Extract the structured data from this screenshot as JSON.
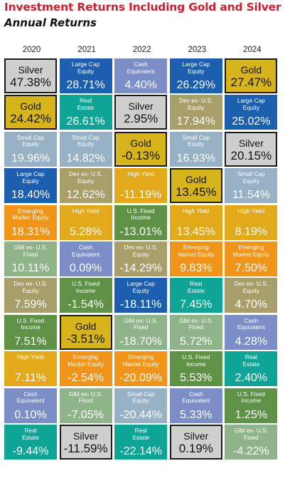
{
  "title": "Investment Returns Including Gold and Silver",
  "subtitle": "Annual Returns",
  "colors": {
    "Silver": "#cfcfcf",
    "Gold": "#d8b41c",
    "Large Cap Equity": "#1b5fae",
    "Real Estate": "#0ea597",
    "Cash Equivalent": "#7b8ec8",
    "Small Cap Equity": "#97b1c6",
    "Dev ex- U.S. Equity": "#a89e6a",
    "High Yield": "#e2aa1a",
    "Emerging Market Equity": "#f0941a",
    "Glbl ex- U.S. Fixed": "#8fb48a",
    "U.S. Fixed Income": "#5f9146",
    "title": "#c8202f"
  },
  "chart_data": {
    "type": "table",
    "title": "Investment Returns Including Gold and Silver",
    "subtitle": "Annual Returns",
    "years": [
      "2020",
      "2021",
      "2022",
      "2023",
      "2024"
    ],
    "columns": [
      {
        "year": "2020",
        "cells": [
          {
            "asset": "Silver",
            "value": "47.38%"
          },
          {
            "asset": "Gold",
            "value": "24.42%"
          },
          {
            "asset": "Small Cap Equity",
            "value": "19.96%"
          },
          {
            "asset": "Large Cap Equity",
            "value": "18.40%"
          },
          {
            "asset": "Emerging Market Equity",
            "value": "18.31%"
          },
          {
            "asset": "Glbl ex- U.S. Fixed",
            "value": "10.11%"
          },
          {
            "asset": "Dev ex- U.S. Equity",
            "value": "7.59%"
          },
          {
            "asset": "U.S. Fixed Income",
            "value": "7.51%"
          },
          {
            "asset": "High Yield",
            "value": "7.11%"
          },
          {
            "asset": "Cash Equivalent",
            "value": "0.10%"
          },
          {
            "asset": "Real Estate",
            "value": "-9.44%"
          }
        ]
      },
      {
        "year": "2021",
        "cells": [
          {
            "asset": "Large Cap Equity",
            "value": "28.71%"
          },
          {
            "asset": "Real Estate",
            "value": "26.61%"
          },
          {
            "asset": "Small Cap Equity",
            "value": "14.82%"
          },
          {
            "asset": "Dev ex- U.S. Equity",
            "value": "12.62%"
          },
          {
            "asset": "High Yield",
            "value": "5.28%"
          },
          {
            "asset": "Cash Equivalent",
            "value": "0.09%"
          },
          {
            "asset": "U.S. Fixed Income",
            "value": "-1.54%"
          },
          {
            "asset": "Gold",
            "value": "-3.51%"
          },
          {
            "asset": "Emerging Market Equity",
            "value": "-2.54%"
          },
          {
            "asset": "Glbl ex- U.S. Fixed",
            "value": "-7.05%"
          },
          {
            "asset": "Silver",
            "value": "-11.59%"
          }
        ]
      },
      {
        "year": "2022",
        "cells": [
          {
            "asset": "Cash Equivalent",
            "value": "4.40%"
          },
          {
            "asset": "Silver",
            "value": "2.95%"
          },
          {
            "asset": "Gold",
            "value": "-0.13%"
          },
          {
            "asset": "High Yield",
            "value": "-11.19%"
          },
          {
            "asset": "U.S. Fixed Income",
            "value": "-13.01%"
          },
          {
            "asset": "Dev ex- U.S. Equity",
            "value": "-14.29%"
          },
          {
            "asset": "Large Cap Equity",
            "value": "-18.11%"
          },
          {
            "asset": "Glbl ex- U.S. Fixed",
            "value": "-18.70%"
          },
          {
            "asset": "Emerging Market Equity",
            "value": "-20.09%"
          },
          {
            "asset": "Small Cap Equity",
            "value": "-20.44%"
          },
          {
            "asset": "Real Estate",
            "value": "-22.14%"
          }
        ]
      },
      {
        "year": "2023",
        "cells": [
          {
            "asset": "Large Cap Equity",
            "value": "26.29%"
          },
          {
            "asset": "Dev ex- U.S. Equity",
            "value": "17.94%"
          },
          {
            "asset": "Small Cap Equity",
            "value": "16.93%"
          },
          {
            "asset": "Gold",
            "value": "13.45%"
          },
          {
            "asset": "High Yield",
            "value": "13.45%"
          },
          {
            "asset": "Emerging Market Equity",
            "value": "9.83%"
          },
          {
            "asset": "Real Estate",
            "value": "7.45%"
          },
          {
            "asset": "Glbl ex- U.S. Fixed",
            "value": "5.72%"
          },
          {
            "asset": "U.S. Fixed Income",
            "value": "5.53%"
          },
          {
            "asset": "Cash Equivalent",
            "value": "5.33%"
          },
          {
            "asset": "Silver",
            "value": "0.19%"
          }
        ]
      },
      {
        "year": "2024",
        "cells": [
          {
            "asset": "Gold",
            "value": "27.47%"
          },
          {
            "asset": "Large Cap Equity",
            "value": "25.02%"
          },
          {
            "asset": "Silver",
            "value": "20.15%"
          },
          {
            "asset": "Small Cap Equity",
            "value": "11.54%"
          },
          {
            "asset": "High Yield",
            "value": "8.19%"
          },
          {
            "asset": "Emerging Market Equity",
            "value": "7.50%"
          },
          {
            "asset": "Dev ex- U.S. Equity",
            "value": "4.70%"
          },
          {
            "asset": "Cash Equivalent",
            "value": "4.28%"
          },
          {
            "asset": "Real Estate",
            "value": "2.40%"
          },
          {
            "asset": "U.S. Fixed Income",
            "value": "1.25%"
          },
          {
            "asset": "Glbl ex- U.S. Fixed",
            "value": "-4.22%"
          }
        ]
      }
    ]
  }
}
